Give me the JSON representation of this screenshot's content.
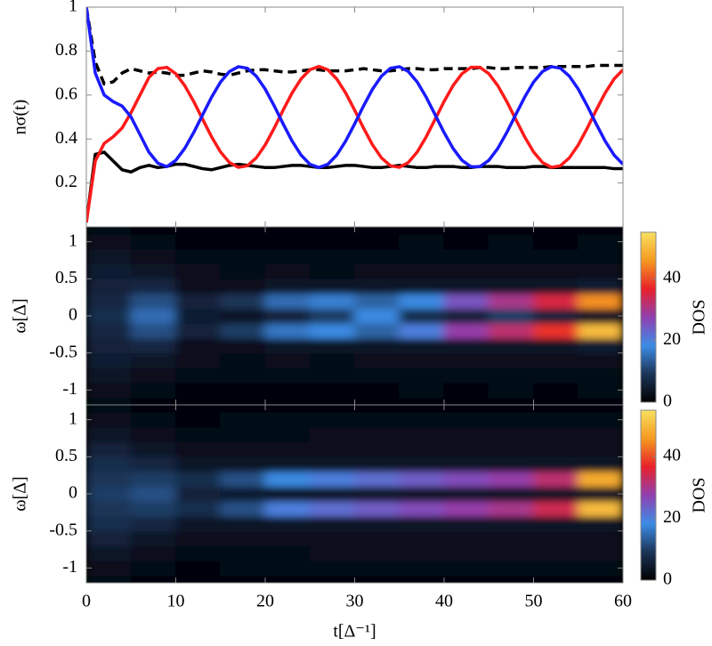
{
  "chart_data": [
    {
      "type": "line",
      "ylabel": "nσ(t)",
      "xlim": [
        0,
        60
      ],
      "ylim": [
        0,
        1
      ],
      "yticks": [
        0.2,
        0.4,
        0.6,
        0.8,
        1
      ],
      "x": [
        0,
        1,
        2,
        3,
        4,
        5,
        6,
        7,
        8,
        9,
        10,
        11,
        12,
        13,
        14,
        15,
        16,
        17,
        18,
        19,
        20,
        21,
        22,
        23,
        24,
        25,
        26,
        27,
        28,
        29,
        30,
        31,
        32,
        33,
        34,
        35,
        36,
        37,
        38,
        39,
        40,
        41,
        42,
        43,
        44,
        45,
        46,
        47,
        48,
        49,
        50,
        51,
        52,
        53,
        54,
        55,
        56,
        57,
        58,
        59,
        60
      ],
      "series": [
        {
          "color": "#000000",
          "dash": true,
          "values": [
            1.0,
            0.75,
            0.65,
            0.66,
            0.7,
            0.72,
            0.71,
            0.7,
            0.705,
            0.7,
            0.69,
            0.69,
            0.7,
            0.71,
            0.705,
            0.695,
            0.69,
            0.7,
            0.71,
            0.715,
            0.715,
            0.71,
            0.705,
            0.705,
            0.71,
            0.715,
            0.715,
            0.71,
            0.71,
            0.71,
            0.715,
            0.72,
            0.715,
            0.71,
            0.71,
            0.715,
            0.72,
            0.72,
            0.715,
            0.715,
            0.72,
            0.72,
            0.72,
            0.72,
            0.725,
            0.725,
            0.72,
            0.72,
            0.725,
            0.725,
            0.725,
            0.725,
            0.73,
            0.73,
            0.73,
            0.73,
            0.73,
            0.735,
            0.735,
            0.735,
            0.735
          ]
        },
        {
          "color": "#000000",
          "dash": false,
          "values": [
            0.02,
            0.33,
            0.34,
            0.3,
            0.26,
            0.25,
            0.27,
            0.28,
            0.27,
            0.275,
            0.285,
            0.285,
            0.275,
            0.265,
            0.26,
            0.27,
            0.28,
            0.285,
            0.28,
            0.275,
            0.27,
            0.27,
            0.275,
            0.28,
            0.28,
            0.275,
            0.27,
            0.27,
            0.275,
            0.28,
            0.28,
            0.275,
            0.27,
            0.27,
            0.275,
            0.28,
            0.275,
            0.27,
            0.27,
            0.275,
            0.275,
            0.275,
            0.27,
            0.27,
            0.275,
            0.275,
            0.275,
            0.27,
            0.27,
            0.27,
            0.275,
            0.275,
            0.27,
            0.27,
            0.27,
            0.27,
            0.27,
            0.27,
            0.27,
            0.265,
            0.265
          ]
        },
        {
          "color": "#ff1a1a",
          "dash": false,
          "values": [
            0.02,
            0.3,
            0.38,
            0.41,
            0.45,
            0.52,
            0.6,
            0.68,
            0.72,
            0.726,
            0.697,
            0.643,
            0.571,
            0.49,
            0.41,
            0.341,
            0.293,
            0.271,
            0.278,
            0.314,
            0.373,
            0.449,
            0.531,
            0.609,
            0.673,
            0.715,
            0.73,
            0.715,
            0.673,
            0.609,
            0.531,
            0.449,
            0.373,
            0.314,
            0.278,
            0.271,
            0.293,
            0.341,
            0.41,
            0.49,
            0.571,
            0.643,
            0.697,
            0.726,
            0.726,
            0.697,
            0.643,
            0.571,
            0.49,
            0.41,
            0.341,
            0.293,
            0.271,
            0.278,
            0.314,
            0.373,
            0.449,
            0.531,
            0.609,
            0.673,
            0.715
          ]
        },
        {
          "color": "#1a1aff",
          "dash": false,
          "values": [
            1.0,
            0.7,
            0.6,
            0.57,
            0.55,
            0.5,
            0.42,
            0.34,
            0.29,
            0.274,
            0.303,
            0.357,
            0.429,
            0.51,
            0.59,
            0.659,
            0.707,
            0.729,
            0.722,
            0.686,
            0.627,
            0.551,
            0.469,
            0.391,
            0.327,
            0.285,
            0.27,
            0.285,
            0.327,
            0.391,
            0.469,
            0.551,
            0.627,
            0.686,
            0.722,
            0.729,
            0.707,
            0.659,
            0.59,
            0.51,
            0.429,
            0.357,
            0.303,
            0.274,
            0.274,
            0.303,
            0.357,
            0.429,
            0.51,
            0.59,
            0.659,
            0.707,
            0.729,
            0.722,
            0.686,
            0.627,
            0.551,
            0.469,
            0.391,
            0.327,
            0.285
          ]
        }
      ]
    },
    {
      "type": "heatmap",
      "ylabel": "ω[Δ]",
      "xlim": [
        0,
        60
      ],
      "ylim": [
        -1.2,
        1.2
      ],
      "yticks": [
        -1,
        -0.5,
        0,
        0.5,
        1
      ],
      "colormap": [
        "#000000",
        "#1c3558",
        "#3c8ce6",
        "#9040b0",
        "#e8202a",
        "#f59a20",
        "#f8e060"
      ],
      "colorbar": {
        "label": "DOS",
        "lim": [
          0,
          55
        ],
        "ticks": [
          0,
          20,
          40
        ]
      },
      "x": [
        2.5,
        7.5,
        12.5,
        17.5,
        22.5,
        27.5,
        32.5,
        37.5,
        42.5,
        47.5,
        52.5,
        57.5
      ],
      "y": [
        -1.2,
        -1.0,
        -0.8,
        -0.6,
        -0.4,
        -0.2,
        0,
        0.2,
        0.4,
        0.6,
        0.8,
        1.0,
        1.2
      ],
      "z": [
        [
          2,
          1,
          1,
          1,
          1,
          1,
          1,
          1,
          1,
          1,
          1,
          1
        ],
        [
          3,
          2,
          1,
          1,
          1,
          1,
          1,
          2,
          1,
          2,
          1,
          2
        ],
        [
          4,
          3,
          2,
          2,
          2,
          2,
          2,
          2,
          2,
          2,
          2,
          2
        ],
        [
          5,
          4,
          3,
          2,
          3,
          2,
          3,
          3,
          3,
          3,
          3,
          3
        ],
        [
          6,
          7,
          3,
          3,
          4,
          4,
          4,
          4,
          4,
          4,
          4,
          5
        ],
        [
          7,
          12,
          6,
          10,
          16,
          18,
          14,
          20,
          28,
          32,
          38,
          50
        ],
        [
          8,
          15,
          5,
          4,
          6,
          10,
          18,
          8,
          6,
          10,
          6,
          4
        ],
        [
          7,
          12,
          6,
          9,
          15,
          17,
          14,
          18,
          25,
          30,
          35,
          45
        ],
        [
          6,
          7,
          3,
          3,
          4,
          4,
          4,
          4,
          4,
          4,
          4,
          5
        ],
        [
          5,
          4,
          3,
          2,
          3,
          2,
          3,
          3,
          3,
          3,
          3,
          3
        ],
        [
          4,
          3,
          2,
          2,
          2,
          2,
          2,
          2,
          2,
          2,
          2,
          2
        ],
        [
          3,
          2,
          1,
          1,
          1,
          1,
          1,
          2,
          1,
          2,
          1,
          2
        ],
        [
          2,
          1,
          1,
          1,
          1,
          1,
          1,
          1,
          1,
          1,
          1,
          1
        ]
      ]
    },
    {
      "type": "heatmap",
      "ylabel": "ω[Δ]",
      "xlabel": "t[Δ⁻¹]",
      "xlim": [
        0,
        60
      ],
      "xticks": [
        0,
        10,
        20,
        30,
        40,
        50,
        60
      ],
      "ylim": [
        -1.2,
        1.2
      ],
      "yticks": [
        -1,
        -0.5,
        0,
        0.5,
        1
      ],
      "colormap": [
        "#000000",
        "#1c3558",
        "#3c8ce6",
        "#9040b0",
        "#e8202a",
        "#f59a20",
        "#f8e060"
      ],
      "colorbar": {
        "label": "DOS",
        "lim": [
          0,
          55
        ],
        "ticks": [
          0,
          20,
          40
        ]
      },
      "x": [
        2.5,
        7.5,
        12.5,
        17.5,
        22.5,
        27.5,
        32.5,
        37.5,
        42.5,
        47.5,
        52.5,
        57.5
      ],
      "y": [
        -1.2,
        -1.0,
        -0.8,
        -0.6,
        -0.4,
        -0.2,
        0,
        0.2,
        0.4,
        0.6,
        0.8,
        1.0,
        1.2
      ],
      "z": [
        [
          2,
          1,
          1,
          1,
          1,
          1,
          1,
          1,
          1,
          1,
          1,
          1
        ],
        [
          3,
          2,
          1,
          2,
          2,
          2,
          2,
          2,
          2,
          2,
          2,
          2
        ],
        [
          4,
          3,
          2,
          2,
          2,
          3,
          3,
          3,
          3,
          3,
          3,
          3
        ],
        [
          6,
          4,
          3,
          3,
          3,
          3,
          3,
          3,
          3,
          3,
          3,
          3
        ],
        [
          8,
          7,
          4,
          4,
          4,
          4,
          4,
          4,
          4,
          4,
          4,
          4
        ],
        [
          9,
          10,
          8,
          12,
          20,
          22,
          24,
          26,
          28,
          30,
          34,
          50
        ],
        [
          10,
          12,
          6,
          5,
          4,
          4,
          4,
          4,
          4,
          4,
          4,
          4
        ],
        [
          9,
          10,
          8,
          12,
          18,
          20,
          22,
          24,
          26,
          28,
          32,
          48
        ],
        [
          8,
          7,
          4,
          4,
          4,
          4,
          4,
          4,
          4,
          4,
          4,
          4
        ],
        [
          6,
          4,
          3,
          3,
          3,
          3,
          3,
          3,
          3,
          3,
          3,
          3
        ],
        [
          4,
          3,
          2,
          2,
          2,
          3,
          3,
          3,
          3,
          3,
          3,
          3
        ],
        [
          3,
          2,
          1,
          2,
          2,
          2,
          2,
          2,
          2,
          2,
          2,
          2
        ],
        [
          2,
          1,
          1,
          1,
          1,
          1,
          1,
          1,
          1,
          1,
          1,
          1
        ]
      ]
    }
  ]
}
